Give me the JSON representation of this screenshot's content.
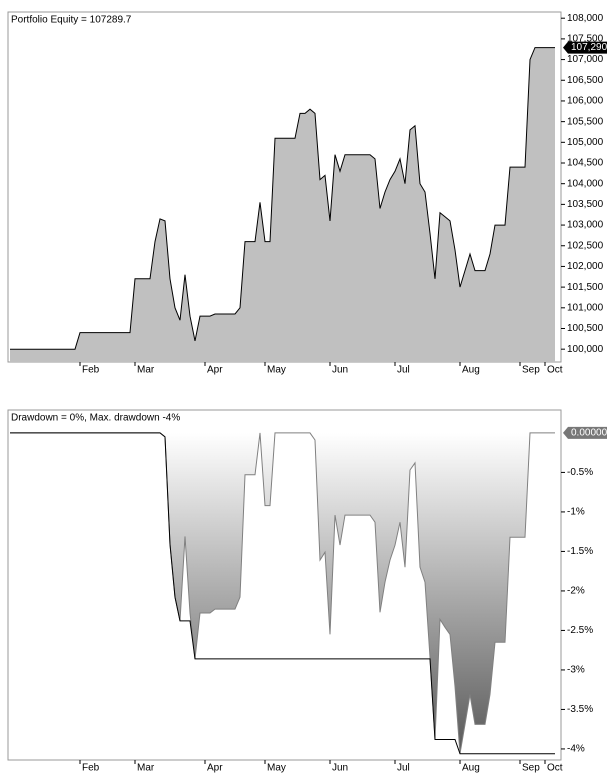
{
  "chart_data": [
    {
      "type": "area",
      "title": "Portfolio Equity = 107289.7",
      "categories": [
        null,
        null,
        null,
        null,
        null,
        null,
        null,
        null,
        null,
        null,
        null,
        null,
        null,
        null,
        "Feb",
        null,
        null,
        null,
        null,
        null,
        null,
        null,
        null,
        null,
        null,
        "Mar",
        null,
        null,
        null,
        null,
        null,
        null,
        null,
        null,
        null,
        null,
        null,
        null,
        null,
        "Apr",
        null,
        null,
        null,
        null,
        null,
        null,
        null,
        null,
        null,
        null,
        null,
        "May",
        null,
        null,
        null,
        null,
        null,
        null,
        null,
        null,
        null,
        null,
        null,
        null,
        "Jun",
        null,
        null,
        null,
        null,
        null,
        null,
        null,
        null,
        null,
        null,
        null,
        null,
        "Jul",
        null,
        null,
        null,
        null,
        null,
        null,
        null,
        null,
        null,
        null,
        null,
        null,
        "Aug",
        null,
        null,
        null,
        null,
        null,
        null,
        null,
        null,
        null,
        null,
        null,
        "Sep",
        null,
        null,
        null,
        null,
        "Oct",
        null,
        null
      ],
      "series": [
        {
          "color": "#c0c0c0",
          "values": [
            100000,
            100000,
            100000,
            100000,
            100000,
            100000,
            100000,
            100000,
            100000,
            100000,
            100000,
            100000,
            100000,
            100000,
            100400,
            100400,
            100400,
            100400,
            100400,
            100400,
            100400,
            100400,
            100400,
            100400,
            100400,
            101700,
            101700,
            101700,
            101700,
            102600,
            103150,
            103100,
            101700,
            101000,
            100700,
            101800,
            100800,
            100200,
            100800,
            100800,
            100800,
            100850,
            100850,
            100850,
            100850,
            100850,
            101000,
            102600,
            102600,
            102600,
            103550,
            102600,
            102600,
            105100,
            105100,
            105100,
            105100,
            105100,
            105700,
            105700,
            105800,
            105700,
            104100,
            104200,
            103100,
            104700,
            104300,
            104700,
            104700,
            104700,
            104700,
            104700,
            104700,
            104600,
            103400,
            103800,
            104100,
            104300,
            104600,
            104000,
            105300,
            105400,
            104000,
            103800,
            102800,
            101700,
            103300,
            103200,
            103100,
            102400,
            101500,
            101900,
            102300,
            101900,
            101900,
            101900,
            102300,
            103000,
            103000,
            103000,
            104400,
            104400,
            104400,
            104400,
            107000,
            107289.7,
            107289.7,
            107289.7,
            107289.7,
            107289.7
          ]
        }
      ],
      "last_value_label": "107,290",
      "ylim": [
        99690,
        108150
      ],
      "yticks": [
        {
          "value": 100000,
          "label": "100,000"
        },
        {
          "value": 100500,
          "label": "100,500"
        },
        {
          "value": 101000,
          "label": "101,000"
        },
        {
          "value": 101500,
          "label": "101,500"
        },
        {
          "value": 102000,
          "label": "102,000"
        },
        {
          "value": 102500,
          "label": "102,500"
        },
        {
          "value": 103000,
          "label": "103,000"
        },
        {
          "value": 103500,
          "label": "103,500"
        },
        {
          "value": 104000,
          "label": "104,000"
        },
        {
          "value": 104500,
          "label": "104,500"
        },
        {
          "value": 105000,
          "label": "105,000"
        },
        {
          "value": 105500,
          "label": "105,500"
        },
        {
          "value": 106000,
          "label": "106,000"
        },
        {
          "value": 106500,
          "label": "106,500"
        },
        {
          "value": 107000,
          "label": "107,000"
        },
        {
          "value": 107500,
          "label": "107,500"
        },
        {
          "value": 108000,
          "label": "108,000"
        }
      ]
    },
    {
      "type": "area",
      "title": "Drawdown = 0%, Max. drawdown -4%",
      "categories": [
        null,
        null,
        null,
        null,
        null,
        null,
        null,
        null,
        null,
        null,
        null,
        null,
        null,
        null,
        "Feb",
        null,
        null,
        null,
        null,
        null,
        null,
        null,
        null,
        null,
        null,
        "Mar",
        null,
        null,
        null,
        null,
        null,
        null,
        null,
        null,
        null,
        null,
        null,
        null,
        null,
        "Apr",
        null,
        null,
        null,
        null,
        null,
        null,
        null,
        null,
        null,
        null,
        null,
        "May",
        null,
        null,
        null,
        null,
        null,
        null,
        null,
        null,
        null,
        null,
        null,
        null,
        "Jun",
        null,
        null,
        null,
        null,
        null,
        null,
        null,
        null,
        null,
        null,
        null,
        null,
        "Jul",
        null,
        null,
        null,
        null,
        null,
        null,
        null,
        null,
        null,
        null,
        null,
        null,
        "Aug",
        null,
        null,
        null,
        null,
        null,
        null,
        null,
        null,
        null,
        null,
        null,
        "Sep",
        null,
        null,
        null,
        null,
        "Oct",
        null,
        null
      ],
      "series": [
        {
          "color": "#808080",
          "values": [
            0,
            0,
            0,
            0,
            0,
            0,
            0,
            0,
            0,
            0,
            0,
            0,
            0,
            0,
            0,
            0,
            0,
            0,
            0,
            0,
            0,
            0,
            0,
            0,
            0,
            0,
            0,
            0,
            0,
            0,
            0,
            -0.05,
            -1.41,
            -2.08,
            -2.38,
            -1.31,
            -2.28,
            -2.86,
            -2.28,
            -2.28,
            -2.28,
            -2.23,
            -2.23,
            -2.23,
            -2.23,
            -2.23,
            -2.08,
            -0.53,
            -0.53,
            -0.53,
            0,
            -0.92,
            -0.92,
            0,
            0,
            0,
            0,
            0,
            0,
            0,
            0,
            -0.09,
            -1.61,
            -1.51,
            -2.55,
            -1.04,
            -1.42,
            -1.04,
            -1.04,
            -1.04,
            -1.04,
            -1.04,
            -1.04,
            -1.13,
            -2.27,
            -1.89,
            -1.61,
            -1.42,
            -1.13,
            -1.7,
            -0.47,
            -0.38,
            -1.7,
            -1.89,
            -2.84,
            -3.88,
            -2.36,
            -2.46,
            -2.55,
            -3.21,
            -4.06,
            -3.69,
            -3.31,
            -3.69,
            -3.69,
            -3.69,
            -3.31,
            -2.65,
            -2.65,
            -2.65,
            -1.32,
            -1.32,
            -1.32,
            -1.32,
            0,
            0,
            0,
            0,
            0,
            0
          ]
        },
        {
          "color": "#000000",
          "values": [
            0,
            0,
            0,
            0,
            0,
            0,
            0,
            0,
            0,
            0,
            0,
            0,
            0,
            0,
            0,
            0,
            0,
            0,
            0,
            0,
            0,
            0,
            0,
            0,
            0,
            0,
            0,
            0,
            0,
            0,
            0,
            -0.05,
            -1.41,
            -2.08,
            -2.38,
            -2.38,
            -2.38,
            -2.86,
            -2.86,
            -2.86,
            -2.86,
            -2.86,
            -2.86,
            -2.86,
            -2.86,
            -2.86,
            -2.86,
            -2.86,
            -2.86,
            -2.86,
            -2.86,
            -2.86,
            -2.86,
            -2.86,
            -2.86,
            -2.86,
            -2.86,
            -2.86,
            -2.86,
            -2.86,
            -2.86,
            -2.86,
            -2.86,
            -2.86,
            -2.86,
            -2.86,
            -2.86,
            -2.86,
            -2.86,
            -2.86,
            -2.86,
            -2.86,
            -2.86,
            -2.86,
            -2.86,
            -2.86,
            -2.86,
            -2.86,
            -2.86,
            -2.86,
            -2.86,
            -2.86,
            -2.86,
            -2.86,
            -2.86,
            -3.88,
            -3.88,
            -3.88,
            -3.88,
            -3.88,
            -4.06,
            -4.06,
            -4.06,
            -4.06,
            -4.06,
            -4.06,
            -4.06,
            -4.06,
            -4.06,
            -4.06,
            -4.06,
            -4.06,
            -4.06,
            -4.06,
            -4.06,
            -4.06,
            -4.06,
            -4.06,
            -4.06,
            -4.06
          ]
        }
      ],
      "last_value_label": "0.00000",
      "ylim": [
        -4.14,
        0.29
      ],
      "yticks": [
        {
          "value": -0.5,
          "label": "-0.5%"
        },
        {
          "value": -1,
          "label": "-1%"
        },
        {
          "value": -1.5,
          "label": "-1.5%"
        },
        {
          "value": -2,
          "label": "-2%"
        },
        {
          "value": -2.5,
          "label": "-2.5%"
        },
        {
          "value": -3,
          "label": "-3%"
        },
        {
          "value": -3.5,
          "label": "-3.5%"
        },
        {
          "value": -4,
          "label": "-4%"
        }
      ]
    }
  ]
}
